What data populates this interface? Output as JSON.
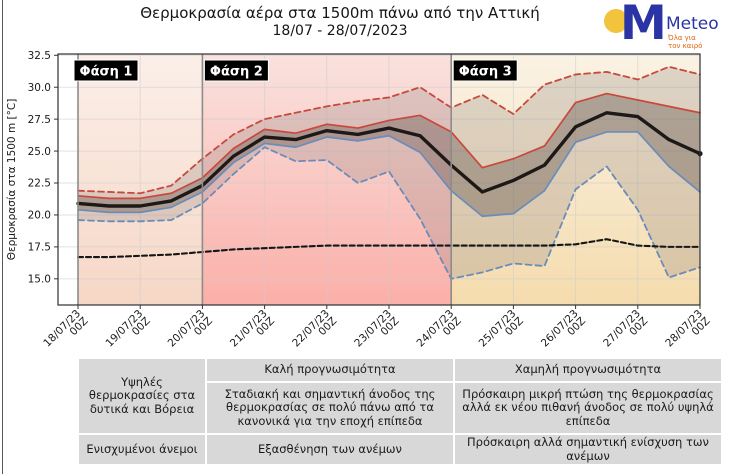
{
  "title": "Θερμοκρασία αέρα στα 1500m πάνω από την Αττική",
  "subtitle": "18/07 - 28/07/2023",
  "logo": {
    "brand": "Meteo",
    "monogram": "M",
    "tagline_line1": "Όλα για",
    "tagline_line2": "τον καιρό",
    "brand_color": "#2b34a4",
    "sun_color": "#f2c33c",
    "tagline_color": "#e0650f"
  },
  "chart_data": {
    "type": "line",
    "title": "Θερμοκρασία αέρα στα 1500m πάνω από την Αττική 18/07 - 28/07/2023",
    "ylabel": "Θερμοκρασία στα 1500 m [°C]",
    "ylim": [
      12.95,
      32.6
    ],
    "yticks": [
      15.0,
      17.5,
      20.0,
      22.5,
      25.0,
      27.5,
      30.0,
      32.5
    ],
    "x_dates": [
      "18/07/23",
      "19/07/23",
      "20/07/23",
      "21/07/23",
      "22/07/23",
      "23/07/23",
      "24/07/23",
      "25/07/23",
      "26/07/23",
      "27/07/23",
      "28/07/23"
    ],
    "x_hour_label": "00Z",
    "x_step_hours": 12,
    "grid": true,
    "series": [
      {
        "name": "ensemble_max",
        "style": "dashed",
        "color": "#c8493c",
        "width": 1.8,
        "values": [
          21.9,
          21.8,
          21.7,
          22.3,
          24.4,
          26.3,
          27.5,
          28.0,
          28.5,
          28.9,
          29.2,
          30.0,
          28.4,
          29.4,
          27.9,
          30.2,
          31.0,
          31.2,
          30.6,
          31.6,
          31.0
        ]
      },
      {
        "name": "percentile_75",
        "style": "solid",
        "color": "#c8493c",
        "width": 1.7,
        "values": [
          21.5,
          21.3,
          21.3,
          21.7,
          22.9,
          25.2,
          26.7,
          26.4,
          27.1,
          26.8,
          27.4,
          27.8,
          26.5,
          23.7,
          24.4,
          25.4,
          28.8,
          29.5,
          29.0,
          28.5,
          28.0
        ]
      },
      {
        "name": "ensemble_mean",
        "style": "solid",
        "color": "#1c1917",
        "width": 3.4,
        "values": [
          20.9,
          20.7,
          20.7,
          21.1,
          22.3,
          24.6,
          26.1,
          25.9,
          26.6,
          26.3,
          26.8,
          26.2,
          23.9,
          21.8,
          22.7,
          23.9,
          26.9,
          28.0,
          27.7,
          25.9,
          24.8
        ]
      },
      {
        "name": "percentile_25",
        "style": "solid",
        "color": "#6a8cba",
        "width": 1.7,
        "values": [
          20.4,
          20.2,
          20.2,
          20.6,
          21.8,
          24.1,
          25.6,
          25.3,
          26.1,
          25.8,
          26.2,
          24.9,
          21.9,
          19.9,
          20.1,
          21.9,
          25.7,
          26.5,
          26.5,
          23.8,
          21.8
        ]
      },
      {
        "name": "ensemble_min",
        "style": "dashed",
        "color": "#6a8cba",
        "width": 1.8,
        "values": [
          19.6,
          19.5,
          19.5,
          19.6,
          20.9,
          23.2,
          25.3,
          24.2,
          24.3,
          22.5,
          23.4,
          19.7,
          15.0,
          15.5,
          16.2,
          16.0,
          22.0,
          23.8,
          20.4,
          15.1,
          15.9
        ]
      },
      {
        "name": "climatology",
        "style": "dashed",
        "color": "#161616",
        "width": 2.1,
        "values": [
          16.7,
          16.7,
          16.8,
          16.9,
          17.1,
          17.3,
          17.4,
          17.5,
          17.6,
          17.6,
          17.6,
          17.6,
          17.6,
          17.6,
          17.6,
          17.6,
          17.7,
          18.1,
          17.6,
          17.5,
          17.5
        ]
      }
    ],
    "bands": [
      {
        "upper": "ensemble_max",
        "lower": "ensemble_min",
        "color": "rgba(140,128,122,0.26)"
      },
      {
        "upper": "percentile_75",
        "lower": "percentile_25",
        "color": "rgba(96,84,80,0.38)"
      }
    ],
    "phases": [
      {
        "label": "Φάση 1",
        "start_index": 0,
        "end_index": 4,
        "bg_top": "#fbefe9",
        "bg_bottom": "#f6d7c6"
      },
      {
        "label": "Φάση 2",
        "start_index": 4,
        "end_index": 12,
        "bg_top": "#f9e2de",
        "bg_bottom": "#fbafa9"
      },
      {
        "label": "Φάση 3",
        "start_index": 12,
        "end_index": 20,
        "bg_top": "#faf2e4",
        "bg_bottom": "#f5dcae"
      }
    ],
    "phase_label_bg": "#000000",
    "phase_label_color": "#ffffff",
    "phase_line_color": "#8c8c8c",
    "grid_color": "#cccccc",
    "border_color": "#2f2f2f"
  },
  "table": {
    "phase1_weather": "Υψηλές θερμοκρασίες στα δυτικά και Βόρεια",
    "phase1_wind": "Ενισχυμένοι άνεμοι",
    "phase2_predictability": "Καλή προγνωσιμότητα",
    "phase2_temperature": "Σταδιακή και σημαντική άνοδος της θερμοκρασίας σε πολύ πάνω από τα κανονικά για την εποχή επίπεδα",
    "phase2_wind": "Εξασθένηση των ανέμων",
    "phase3_predictability": "Χαμηλή προγνωσιμότητα",
    "phase3_temperature": "Πρόσκαιρη μικρή πτώση της θερμοκρασίας αλλά εκ νέου πιθανή άνοδος σε πολύ υψηλά επίπεδα",
    "phase3_wind": "Πρόσκαιρη αλλά σημαντική ενίσχυση των ανέμων"
  }
}
